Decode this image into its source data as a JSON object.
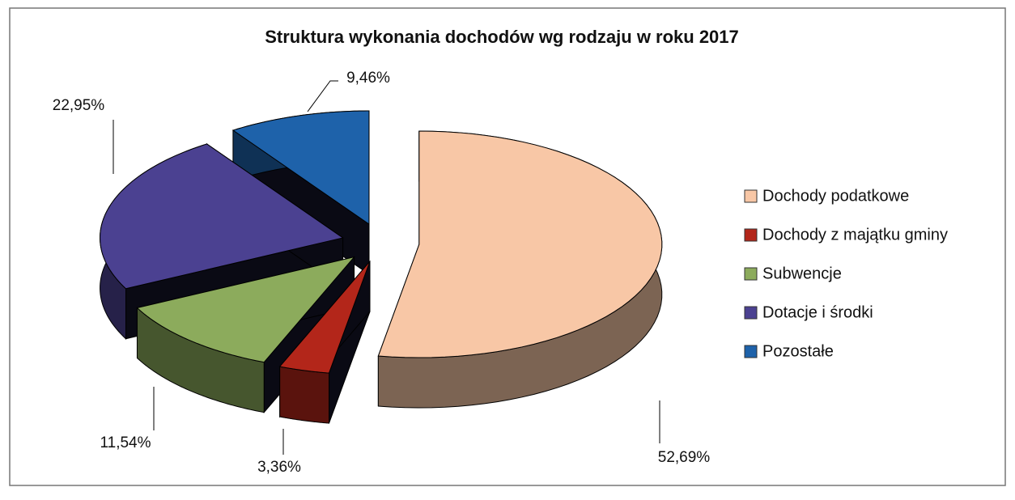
{
  "chart_data": {
    "type": "pie3d",
    "title": "Struktura wykonania dochodów wg rodzaju w roku 2017",
    "categories": [
      "Dochody podatkowe",
      "Dochody z majątku gminy",
      "Subwencje",
      "Dotacje i środki",
      "Pozostałe"
    ],
    "values": [
      52.69,
      3.36,
      11.54,
      22.95,
      9.46
    ],
    "value_labels": [
      "52,69%",
      "3,36%",
      "11,54%",
      "22,95%",
      "9,46%"
    ],
    "colors": [
      "#f8c7a6",
      "#b3261a",
      "#8cab5c",
      "#4b4191",
      "#1e62aa"
    ],
    "legend": "right"
  }
}
